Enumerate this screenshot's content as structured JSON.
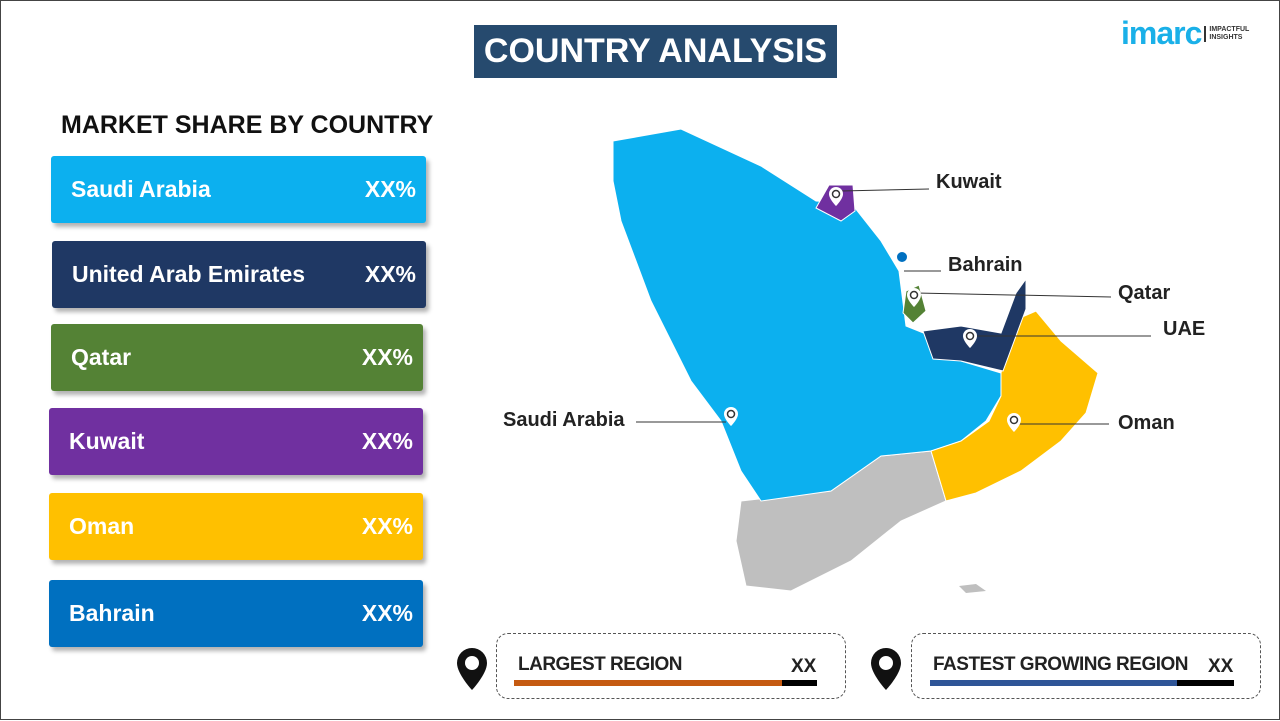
{
  "header": {
    "title": "COUNTRY ANALYSIS",
    "logo_word": "imarc",
    "logo_tagline_1": "IMPACTFUL",
    "logo_tagline_2": "INSIGHTS"
  },
  "panel": {
    "title": "MARKET SHARE BY COUNTRY",
    "items": [
      {
        "country": "Saudi Arabia",
        "value": "XX%",
        "color": "#0cb0ef"
      },
      {
        "country": "United Arab Emirates",
        "value": "XX%",
        "color": "#1f3864"
      },
      {
        "country": "Qatar",
        "value": "XX%",
        "color": "#548235"
      },
      {
        "country": "Kuwait",
        "value": "XX%",
        "color": "#7030a0"
      },
      {
        "country": "Oman",
        "value": "XX%",
        "color": "#ffc000"
      },
      {
        "country": "Bahrain",
        "value": "XX%",
        "color": "#0070c0"
      }
    ]
  },
  "map": {
    "labels": {
      "kuwait": "Kuwait",
      "bahrain": "Bahrain",
      "qatar": "Qatar",
      "uae": "UAE",
      "saudi": "Saudi Arabia",
      "oman": "Oman"
    },
    "other_color": "#bfbfbf"
  },
  "footer": {
    "largest": {
      "label": "LARGEST REGION",
      "value": "XX",
      "color": "#c55a11"
    },
    "fastest": {
      "label": "FASTEST GROWING REGION",
      "value": "XX",
      "color": "#2f5597"
    }
  }
}
